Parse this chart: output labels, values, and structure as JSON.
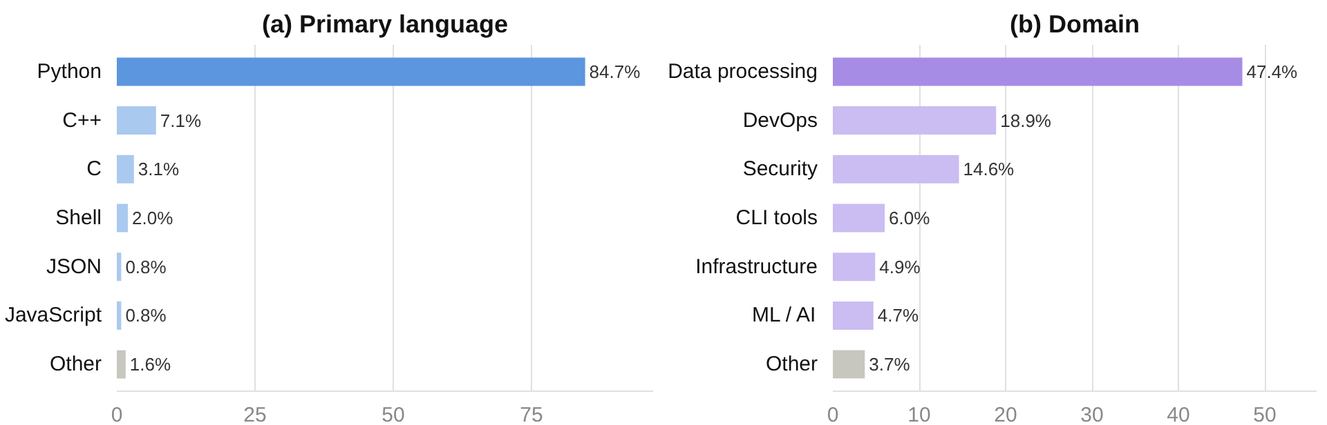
{
  "chart_data": [
    {
      "type": "bar",
      "orientation": "horizontal",
      "title": "(a) Primary language",
      "categories": [
        "Python",
        "C++",
        "C",
        "Shell",
        "JSON",
        "JavaScript",
        "Other"
      ],
      "values": [
        84.7,
        7.1,
        3.1,
        2.0,
        0.8,
        0.8,
        1.6
      ],
      "colors": [
        "#5b96de",
        "#a9c9ef",
        "#a9c9ef",
        "#a9c9ef",
        "#a9c9ef",
        "#a9c9ef",
        "#c8c7bf"
      ],
      "value_labels": [
        "84.7%",
        "7.1%",
        "3.1%",
        "2.0%",
        "0.8%",
        "0.8%",
        "1.6%"
      ],
      "xlim": [
        0,
        97
      ],
      "xticks": [
        0,
        25,
        50,
        75
      ],
      "grid": "x"
    },
    {
      "type": "bar",
      "orientation": "horizontal",
      "title": "(b) Domain",
      "categories": [
        "Data processing",
        "DevOps",
        "Security",
        "CLI tools",
        "Infrastructure",
        "ML / AI",
        "Other"
      ],
      "values": [
        47.4,
        18.9,
        14.6,
        6.0,
        4.9,
        4.7,
        3.7
      ],
      "colors": [
        "#a78ce6",
        "#cbbcf2",
        "#cbbcf2",
        "#cbbcf2",
        "#cbbcf2",
        "#cbbcf2",
        "#c8c7bf"
      ],
      "value_labels": [
        "47.4%",
        "18.9%",
        "14.6%",
        "6.0%",
        "4.9%",
        "4.7%",
        "3.7%"
      ],
      "xlim": [
        0,
        56
      ],
      "xticks": [
        0,
        10,
        20,
        30,
        40,
        50
      ],
      "grid": "x"
    }
  ]
}
